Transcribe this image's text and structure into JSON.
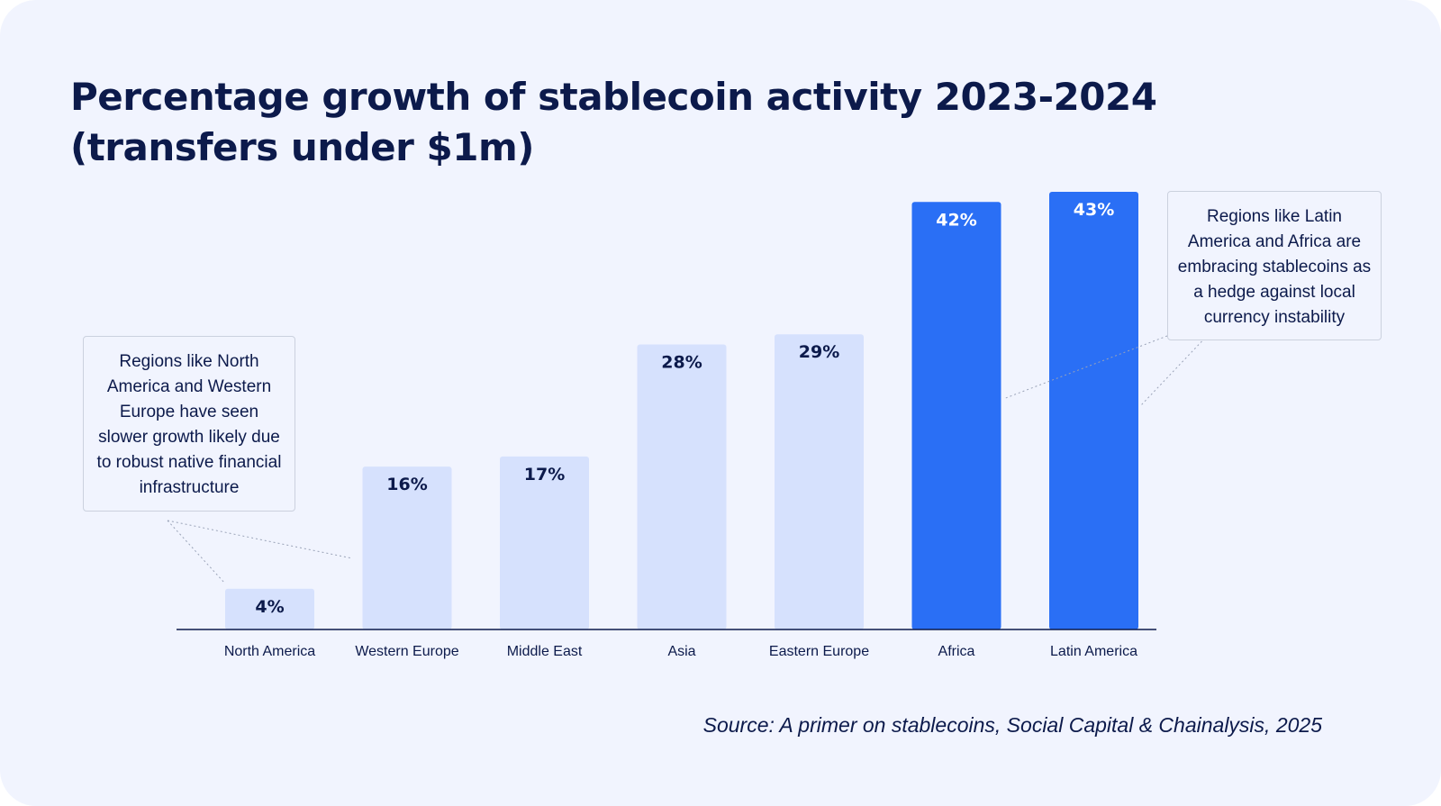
{
  "title_line1": "Percentage growth of stablecoin activity 2023-2024",
  "title_line2": "(transfers under $1m)",
  "callouts": {
    "left": "Regions like North America and Western Europe have seen slower growth likely due to robust native financial infrastructure",
    "right": "Regions like Latin America and Africa are embracing stablecoins as a hedge against local currency instability"
  },
  "source": "Source: A primer on stablecoins, Social Capital & Chainalysis, 2025",
  "colors": {
    "background": "#f1f4fe",
    "bar_light": "#d6e1fd",
    "bar_highlight": "#2a6ff5",
    "label_dark": "#0c1a4b",
    "label_light": "#ffffff"
  },
  "chart_data": {
    "type": "bar",
    "title": "Percentage growth of stablecoin activity 2023-2024 (transfers under $1m)",
    "categories": [
      "North America",
      "Western Europe",
      "Middle East",
      "Asia",
      "Eastern Europe",
      "Africa",
      "Latin America"
    ],
    "values": [
      4,
      16,
      17,
      28,
      29,
      42,
      43
    ],
    "value_labels": [
      "4%",
      "16%",
      "17%",
      "28%",
      "29%",
      "42%",
      "43%"
    ],
    "highlighted": [
      false,
      false,
      false,
      false,
      false,
      true,
      true
    ],
    "ylim": [
      0,
      43
    ],
    "grid": false,
    "xlabel": "",
    "ylabel": ""
  }
}
